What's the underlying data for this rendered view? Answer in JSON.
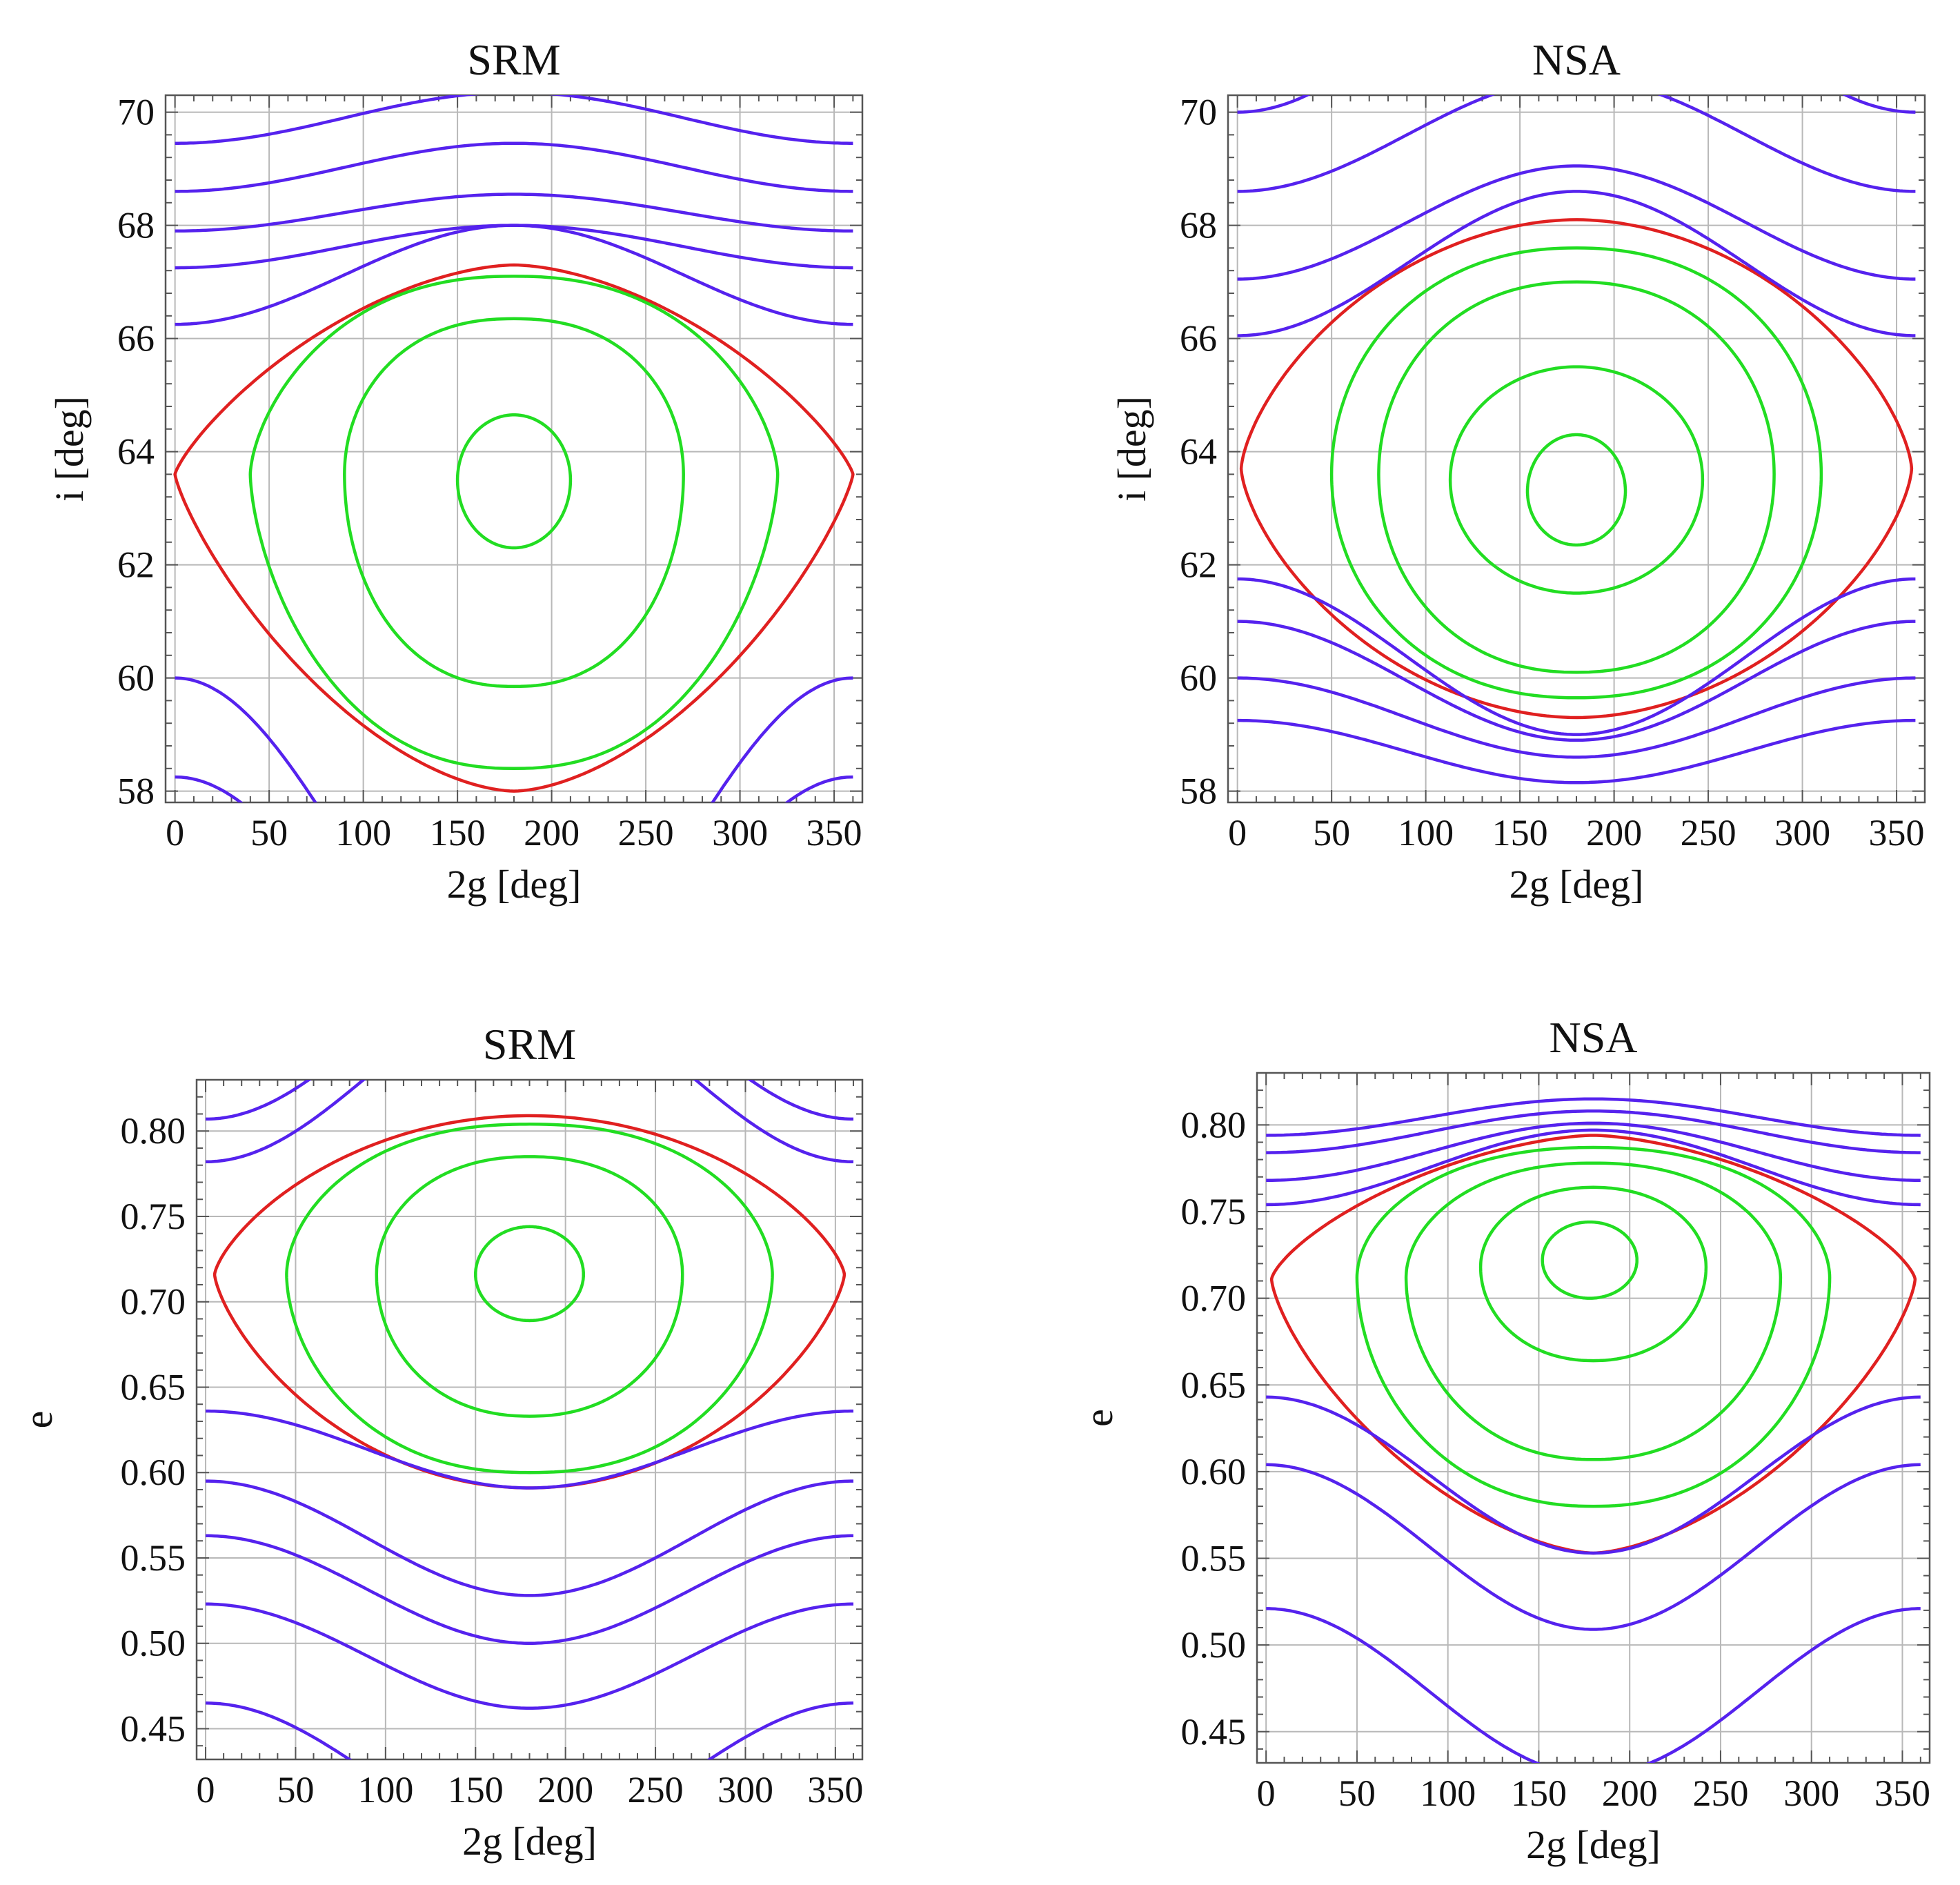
{
  "figure": {
    "colors": {
      "librating": "#22dd22",
      "separatrix": "#e02020",
      "circulating": "#5522ee",
      "grid": "#b8b8b8",
      "frame": "#555555"
    }
  },
  "chart_data": [
    {
      "type": "line",
      "title": "SRM",
      "xlabel": "2g [deg]",
      "ylabel": "i [deg]",
      "xlim": [
        -5,
        365
      ],
      "ylim": [
        57.8,
        70.3
      ],
      "xticks": [
        0,
        50,
        100,
        150,
        200,
        250,
        300,
        350
      ],
      "yticks": [
        58,
        60,
        62,
        64,
        66,
        68,
        70
      ],
      "xtick_labels": [
        "0",
        "50",
        "100",
        "150",
        "200",
        "250",
        "300",
        "350"
      ],
      "ytick_labels": [
        "58",
        "60",
        "62",
        "64",
        "66",
        "68",
        "70"
      ],
      "grid": true,
      "series": [
        {
          "name": "separatrix",
          "kind": "closed",
          "color": "#e02020",
          "center": [
            180,
            63.6
          ],
          "xr": 180,
          "top": 67.3,
          "bottom": 58.0,
          "px": 1.7,
          "py": 1.25
        },
        {
          "name": "libration 1",
          "kind": "closed",
          "color": "#22dd22",
          "center": [
            180,
            63.6
          ],
          "xr": 140,
          "top": 67.1,
          "bottom": 58.4,
          "px": 2.3,
          "py": 1.6
        },
        {
          "name": "libration 2",
          "kind": "closed",
          "color": "#22dd22",
          "center": [
            180,
            63.6
          ],
          "xr": 90,
          "top": 66.35,
          "bottom": 59.85,
          "px": 2.3,
          "py": 2.0
        },
        {
          "name": "libration 3",
          "kind": "closed",
          "color": "#22dd22",
          "center": [
            180,
            63.5
          ],
          "xr": 30,
          "top": 64.65,
          "bottom": 62.3,
          "px": 2.0,
          "py": 2.0
        },
        {
          "name": "circulation 1",
          "kind": "wave",
          "color": "#5522ee",
          "base": 69.45,
          "amp": 0.9,
          "xmin": 0,
          "xmax": 360
        },
        {
          "name": "circulation 2",
          "kind": "wave",
          "color": "#5522ee",
          "base": 68.6,
          "amp": 0.85,
          "xmin": 0,
          "xmax": 360
        },
        {
          "name": "circulation 3",
          "kind": "wave",
          "color": "#5522ee",
          "base": 67.9,
          "amp": 0.65,
          "xmin": 0,
          "xmax": 360
        },
        {
          "name": "circulation 4",
          "kind": "wave",
          "color": "#5522ee",
          "base": 67.25,
          "amp": 0.75,
          "xmin": 0,
          "xmax": 360
        },
        {
          "name": "circulation 5",
          "kind": "wave",
          "color": "#5522ee",
          "base": 66.25,
          "amp": 1.75,
          "xmin": 0,
          "xmax": 360
        },
        {
          "name": "circulation 6",
          "kind": "wave",
          "color": "#5522ee",
          "base": 60.0,
          "amp": -6.0,
          "xmin": 0,
          "xmax": 360
        },
        {
          "name": "circulation 7",
          "kind": "wave",
          "color": "#5522ee",
          "base": 58.25,
          "amp": -5.0,
          "xmin": 0,
          "xmax": 360
        }
      ]
    },
    {
      "type": "line",
      "title": "NSA",
      "xlabel": "2g [deg]",
      "ylabel": "i [deg]",
      "xlim": [
        -5,
        365
      ],
      "ylim": [
        57.8,
        70.3
      ],
      "xticks": [
        0,
        50,
        100,
        150,
        200,
        250,
        300,
        350
      ],
      "yticks": [
        58,
        60,
        62,
        64,
        66,
        68,
        70
      ],
      "xtick_labels": [
        "0",
        "50",
        "100",
        "150",
        "200",
        "250",
        "300",
        "350"
      ],
      "ytick_labels": [
        "58",
        "60",
        "62",
        "64",
        "66",
        "68",
        "70"
      ],
      "grid": true,
      "series": [
        {
          "name": "separatrix",
          "kind": "closed",
          "color": "#e02020",
          "center": [
            180,
            63.7
          ],
          "xr": 178,
          "top": 68.1,
          "bottom": 59.3,
          "px": 1.9,
          "py": 1.5
        },
        {
          "name": "libration 1",
          "kind": "closed",
          "color": "#22dd22",
          "center": [
            180,
            63.6
          ],
          "xr": 130,
          "top": 67.6,
          "bottom": 59.65,
          "px": 2.2,
          "py": 2.0
        },
        {
          "name": "libration 2",
          "kind": "closed",
          "color": "#22dd22",
          "center": [
            180,
            63.6
          ],
          "xr": 105,
          "top": 67.0,
          "bottom": 60.1,
          "px": 2.2,
          "py": 2.0
        },
        {
          "name": "libration 3",
          "kind": "closed",
          "color": "#22dd22",
          "center": [
            180,
            63.5
          ],
          "xr": 67,
          "top": 65.5,
          "bottom": 61.5,
          "px": 2.0,
          "py": 2.0
        },
        {
          "name": "libration 4",
          "kind": "closed",
          "color": "#22dd22",
          "center": [
            180,
            63.3
          ],
          "xr": 26,
          "top": 64.3,
          "bottom": 62.35,
          "px": 2.0,
          "py": 2.0
        },
        {
          "name": "circulation 1",
          "kind": "wave",
          "color": "#5522ee",
          "base": 68.6,
          "amp": 2.0,
          "xmin": 0,
          "xmax": 360
        },
        {
          "name": "circulation 2",
          "kind": "wave",
          "color": "#5522ee",
          "base": 67.05,
          "amp": 2.0,
          "xmin": 0,
          "xmax": 360
        },
        {
          "name": "circulation 3",
          "kind": "wave",
          "color": "#5522ee",
          "base": 66.05,
          "amp": 2.55,
          "xmin": 0,
          "xmax": 360
        },
        {
          "name": "circulation 4",
          "kind": "wave",
          "color": "#5522ee",
          "base": 61.75,
          "amp": -2.75,
          "xmin": 0,
          "xmax": 360
        },
        {
          "name": "circulation 5",
          "kind": "wave",
          "color": "#5522ee",
          "base": 61.0,
          "amp": -2.1,
          "xmin": 0,
          "xmax": 360
        },
        {
          "name": "circulation 6",
          "kind": "wave",
          "color": "#5522ee",
          "base": 60.0,
          "amp": -1.4,
          "xmin": 0,
          "xmax": 360
        },
        {
          "name": "circulation 7",
          "kind": "wave",
          "color": "#5522ee",
          "base": 59.25,
          "amp": -1.1,
          "xmin": 0,
          "xmax": 360
        },
        {
          "name": "circulation 8",
          "kind": "wave",
          "color": "#5522ee",
          "base": 70.0,
          "amp": 3.0,
          "xmin": 0,
          "xmax": 360
        }
      ]
    },
    {
      "type": "line",
      "title": "SRM",
      "xlabel": "2g [deg]",
      "ylabel": "e",
      "xlim": [
        -5,
        365
      ],
      "ylim": [
        0.432,
        0.83
      ],
      "xticks": [
        0,
        50,
        100,
        150,
        200,
        250,
        300,
        350
      ],
      "yticks": [
        0.45,
        0.5,
        0.55,
        0.6,
        0.65,
        0.7,
        0.75,
        0.8
      ],
      "xtick_labels": [
        "0",
        "50",
        "100",
        "150",
        "200",
        "250",
        "300",
        "350"
      ],
      "ytick_labels": [
        "0.45",
        "0.50",
        "0.55",
        "0.60",
        "0.65",
        "0.70",
        "0.75",
        "0.80"
      ],
      "grid": true,
      "series": [
        {
          "name": "separatrix",
          "kind": "closed",
          "color": "#e02020",
          "center": [
            180,
            0.716
          ],
          "xr": 175,
          "top": 0.809,
          "bottom": 0.591,
          "px": 2.0,
          "py": 1.4
        },
        {
          "name": "libration 1",
          "kind": "closed",
          "color": "#22dd22",
          "center": [
            180,
            0.716
          ],
          "xr": 135,
          "top": 0.804,
          "bottom": 0.6,
          "px": 2.3,
          "py": 1.8
        },
        {
          "name": "libration 2",
          "kind": "closed",
          "color": "#22dd22",
          "center": [
            180,
            0.716
          ],
          "xr": 85,
          "top": 0.785,
          "bottom": 0.633,
          "px": 2.2,
          "py": 2.0
        },
        {
          "name": "libration 3",
          "kind": "closed",
          "color": "#22dd22",
          "center": [
            180,
            0.716
          ],
          "xr": 30,
          "top": 0.744,
          "bottom": 0.689,
          "px": 2.0,
          "py": 2.0
        },
        {
          "name": "circulation 1",
          "kind": "wave",
          "color": "#5522ee",
          "base": 0.807,
          "amp": 0.1,
          "xmin": 0,
          "xmax": 360
        },
        {
          "name": "circulation 2",
          "kind": "wave",
          "color": "#5522ee",
          "base": 0.782,
          "amp": 0.1,
          "xmin": 0,
          "xmax": 360
        },
        {
          "name": "circulation 3",
          "kind": "wave",
          "color": "#5522ee",
          "base": 0.636,
          "amp": -0.045,
          "xmin": 0,
          "xmax": 360
        },
        {
          "name": "circulation 4",
          "kind": "wave",
          "color": "#5522ee",
          "base": 0.595,
          "amp": -0.067,
          "xmin": 0,
          "xmax": 360
        },
        {
          "name": "circulation 5",
          "kind": "wave",
          "color": "#5522ee",
          "base": 0.563,
          "amp": -0.063,
          "xmin": 0,
          "xmax": 360
        },
        {
          "name": "circulation 6",
          "kind": "wave",
          "color": "#5522ee",
          "base": 0.523,
          "amp": -0.061,
          "xmin": 0,
          "xmax": 360
        },
        {
          "name": "circulation 7",
          "kind": "wave",
          "color": "#5522ee",
          "base": 0.465,
          "amp": -0.08,
          "xmin": 0,
          "xmax": 360
        }
      ]
    },
    {
      "type": "line",
      "title": "NSA",
      "xlabel": "2g [deg]",
      "ylabel": "e",
      "xlim": [
        -5,
        365
      ],
      "ylim": [
        0.432,
        0.83
      ],
      "xticks": [
        0,
        50,
        100,
        150,
        200,
        250,
        300,
        350
      ],
      "yticks": [
        0.45,
        0.5,
        0.55,
        0.6,
        0.65,
        0.7,
        0.75,
        0.8
      ],
      "xtick_labels": [
        "0",
        "50",
        "100",
        "150",
        "200",
        "250",
        "300",
        "350"
      ],
      "ytick_labels": [
        "0.45",
        "0.50",
        "0.55",
        "0.60",
        "0.65",
        "0.70",
        "0.75",
        "0.80"
      ],
      "grid": true,
      "series": [
        {
          "name": "separatrix",
          "kind": "closed",
          "color": "#e02020",
          "center": [
            180,
            0.711
          ],
          "xr": 177,
          "top": 0.794,
          "bottom": 0.553,
          "px": 1.6,
          "py": 1.4
        },
        {
          "name": "libration 1",
          "kind": "closed",
          "color": "#22dd22",
          "center": [
            180,
            0.712
          ],
          "xr": 130,
          "top": 0.787,
          "bottom": 0.58,
          "px": 2.2,
          "py": 1.9
        },
        {
          "name": "libration 2",
          "kind": "closed",
          "color": "#22dd22",
          "center": [
            180,
            0.712
          ],
          "xr": 103,
          "top": 0.778,
          "bottom": 0.607,
          "px": 2.2,
          "py": 1.9
        },
        {
          "name": "libration 3",
          "kind": "closed",
          "color": "#22dd22",
          "center": [
            180,
            0.718
          ],
          "xr": 62,
          "top": 0.764,
          "bottom": 0.664,
          "px": 2.1,
          "py": 2.0
        },
        {
          "name": "libration 4",
          "kind": "closed",
          "color": "#22dd22",
          "center": [
            178,
            0.722
          ],
          "xr": 26,
          "top": 0.744,
          "bottom": 0.7,
          "px": 2.0,
          "py": 2.0
        },
        {
          "name": "circulation 1",
          "kind": "wave",
          "color": "#5522ee",
          "base": 0.794,
          "amp": 0.021,
          "xmin": 0,
          "xmax": 360
        },
        {
          "name": "circulation 2",
          "kind": "wave",
          "color": "#5522ee",
          "base": 0.784,
          "amp": 0.024,
          "xmin": 0,
          "xmax": 360
        },
        {
          "name": "circulation 3",
          "kind": "wave",
          "color": "#5522ee",
          "base": 0.768,
          "amp": 0.033,
          "xmin": 0,
          "xmax": 360
        },
        {
          "name": "circulation 4",
          "kind": "wave",
          "color": "#5522ee",
          "base": 0.754,
          "amp": 0.043,
          "xmin": 0,
          "xmax": 360
        },
        {
          "name": "circulation 5",
          "kind": "wave",
          "color": "#5522ee",
          "base": 0.643,
          "amp": -0.09,
          "xmin": 0,
          "xmax": 360
        },
        {
          "name": "circulation 6",
          "kind": "wave",
          "color": "#5522ee",
          "base": 0.604,
          "amp": -0.095,
          "xmin": 0,
          "xmax": 360
        },
        {
          "name": "circulation 7",
          "kind": "wave",
          "color": "#5522ee",
          "base": 0.521,
          "amp": -0.096,
          "xmin": 0,
          "xmax": 360
        }
      ]
    }
  ]
}
